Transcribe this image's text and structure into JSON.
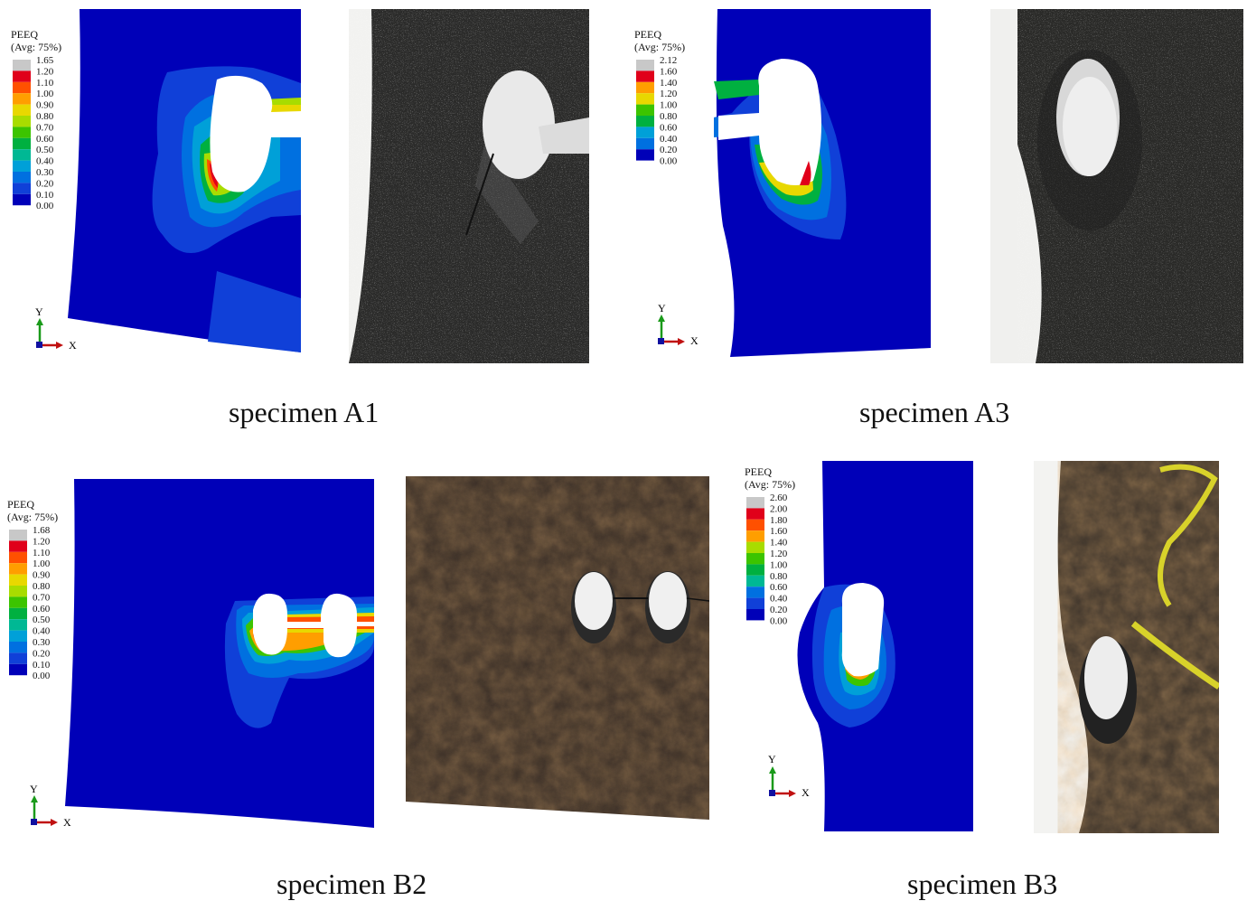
{
  "legend_colors": [
    "#c8c8c8",
    "#e0001a",
    "#ff5000",
    "#ff9e00",
    "#e8d800",
    "#a8dc00",
    "#3cc400",
    "#00b040",
    "#00b894",
    "#00a0d8",
    "#0070e0",
    "#1040d8",
    "#0000b8"
  ],
  "panels": [
    {
      "caption": "specimen A1",
      "legend": {
        "title1": "PEEQ",
        "title2": "(Avg: 75%)",
        "values": [
          "1.65",
          "1.20",
          "1.10",
          "1.00",
          "0.90",
          "0.80",
          "0.70",
          "0.60",
          "0.50",
          "0.40",
          "0.30",
          "0.20",
          "0.10",
          "0.00"
        ]
      },
      "axes": {
        "y": "Y",
        "x": "X"
      }
    },
    {
      "caption": "specimen A3",
      "legend": {
        "title1": "PEEQ",
        "title2": "(Avg: 75%)",
        "values": [
          "2.12",
          "1.60",
          "1.40",
          "1.20",
          "1.00",
          "0.80",
          "0.60",
          "0.40",
          "0.20",
          "0.00"
        ]
      },
      "axes": {
        "y": "Y",
        "x": "X"
      }
    },
    {
      "caption": "specimen B2",
      "legend": {
        "title1": "PEEQ",
        "title2": "(Avg: 75%)",
        "values": [
          "1.68",
          "1.20",
          "1.10",
          "1.00",
          "0.90",
          "0.80",
          "0.70",
          "0.60",
          "0.50",
          "0.40",
          "0.30",
          "0.20",
          "0.10",
          "0.00"
        ]
      },
      "axes": {
        "y": "Y",
        "x": "X"
      }
    },
    {
      "caption": "specimen B3",
      "legend": {
        "title1": "PEEQ",
        "title2": "(Avg: 75%)",
        "values": [
          "2.60",
          "2.00",
          "1.80",
          "1.60",
          "1.40",
          "1.20",
          "1.00",
          "0.80",
          "0.60",
          "0.40",
          "0.20",
          "0.00"
        ]
      },
      "axes": {
        "y": "Y",
        "x": "X"
      }
    }
  ]
}
